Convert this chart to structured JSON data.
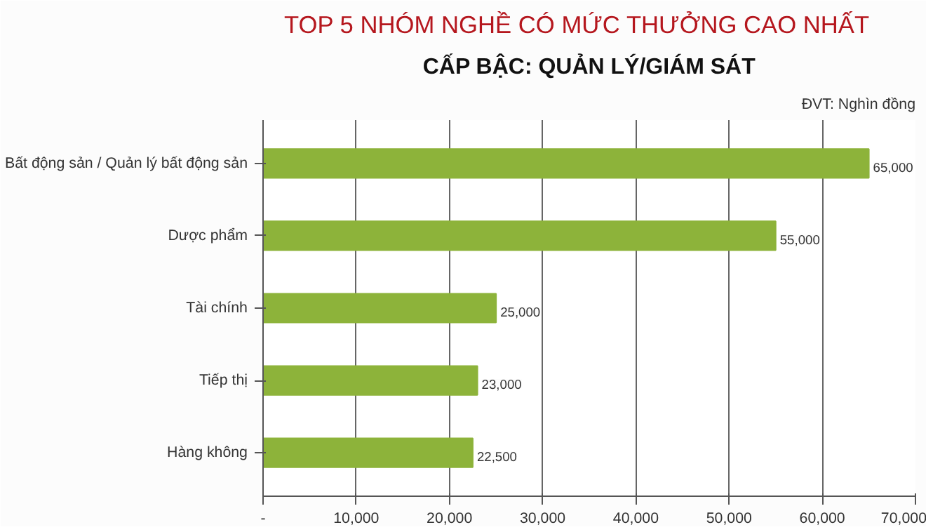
{
  "chart_data": {
    "type": "bar",
    "orientation": "horizontal",
    "title": "TOP 5 NHÓM NGHỀ CÓ MỨC THƯỞNG CAO NHẤT",
    "subtitle": "CẤP BẬC: QUẢN LÝ/GIÁM SÁT",
    "annotations": [
      "ĐVT: Nghìn đồng"
    ],
    "categories": [
      "Bất động sản / Quản lý bất động sản",
      "Dược phẩm",
      "Tài chính",
      "Tiếp thị",
      "Hàng không"
    ],
    "values": [
      65000,
      55000,
      25000,
      23000,
      22500
    ],
    "color": "#8db33a",
    "value_labels": [
      "65,000",
      "55,000",
      "25,000",
      "23,000",
      "22,500"
    ],
    "xlim": [
      0,
      70000
    ],
    "xticks": [
      {
        "value": 0,
        "label": "-"
      },
      {
        "value": 10000,
        "label": "10,000"
      },
      {
        "value": 20000,
        "label": "20,000"
      },
      {
        "value": 30000,
        "label": "30,000"
      },
      {
        "value": 40000,
        "label": "40,000"
      },
      {
        "value": 50000,
        "label": "50,000"
      },
      {
        "value": 60000,
        "label": "60,000"
      },
      {
        "value": 70000,
        "label": "70,000"
      }
    ],
    "grid": "x"
  }
}
